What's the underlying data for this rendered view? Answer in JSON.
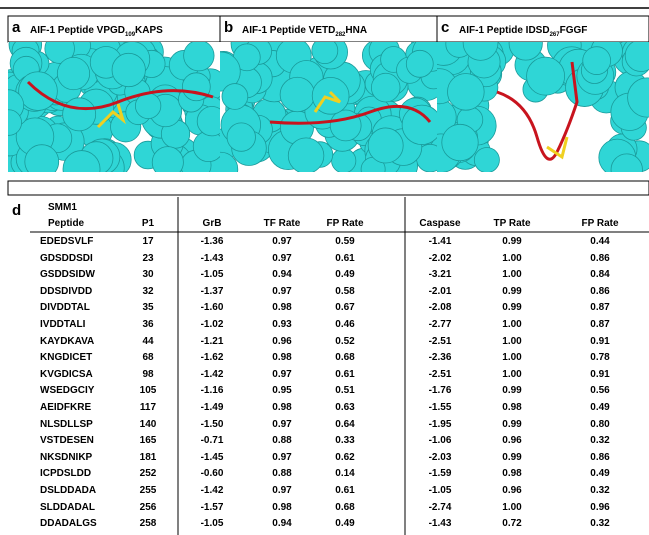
{
  "panels": [
    {
      "letter": "a",
      "title": "AIF-1 Peptide VPGD",
      "subscript": "109",
      "title_end": "KAPS"
    },
    {
      "letter": "b",
      "title": "AIF-1 Peptide VETD",
      "subscript": "282",
      "title_end": "HNA"
    },
    {
      "letter": "c",
      "title": "AIF-1 Peptide IDSD",
      "subscript": "267",
      "title_end": "FGGF"
    }
  ],
  "table": {
    "letter": "d",
    "header_top": "SMM1",
    "columns": [
      "Peptide",
      "P1",
      "GrB",
      "TF Rate",
      "FP Rate",
      "Caspase",
      "TP Rate",
      "FP Rate"
    ],
    "rows": [
      [
        "EDEDSVLF",
        "17",
        "-1.36",
        "0.97",
        "0.59",
        "-1.41",
        "0.99",
        "0.44"
      ],
      [
        "GDSDDSDI",
        "23",
        "-1.43",
        "0.97",
        "0.61",
        "-2.02",
        "1.00",
        "0.86"
      ],
      [
        "GSDDSIDW",
        "30",
        "-1.05",
        "0.94",
        "0.49",
        "-3.21",
        "1.00",
        "0.84"
      ],
      [
        "DDSDIVDD",
        "32",
        "-1.37",
        "0.97",
        "0.58",
        "-2.01",
        "0.99",
        "0.86"
      ],
      [
        "DIVDDTAL",
        "35",
        "-1.60",
        "0.98",
        "0.67",
        "-2.08",
        "0.99",
        "0.87"
      ],
      [
        "IVDDTALI",
        "36",
        "-1.02",
        "0.93",
        "0.46",
        "-2.77",
        "1.00",
        "0.87"
      ],
      [
        "KAYDKAVA",
        "44",
        "-1.21",
        "0.96",
        "0.52",
        "-2.51",
        "1.00",
        "0.91"
      ],
      [
        "KNGDICET",
        "68",
        "-1.62",
        "0.98",
        "0.68",
        "-2.36",
        "1.00",
        "0.78"
      ],
      [
        "KVGDICSA",
        "98",
        "-1.42",
        "0.97",
        "0.61",
        "-2.51",
        "1.00",
        "0.91"
      ],
      [
        "WSEDGCIY",
        "105",
        "-1.16",
        "0.95",
        "0.51",
        "-1.76",
        "0.99",
        "0.56"
      ],
      [
        "AEIDFKRE",
        "117",
        "-1.49",
        "0.98",
        "0.63",
        "-1.55",
        "0.98",
        "0.49"
      ],
      [
        "NLSDLLSP",
        "140",
        "-1.50",
        "0.97",
        "0.64",
        "-1.95",
        "0.99",
        "0.80"
      ],
      [
        "VSTDESEN",
        "165",
        "-0.71",
        "0.88",
        "0.33",
        "-1.06",
        "0.96",
        "0.32"
      ],
      [
        "NKSDNIKP",
        "181",
        "-1.45",
        "0.97",
        "0.62",
        "-2.03",
        "0.99",
        "0.86"
      ],
      [
        "ICPDSLDD",
        "252",
        "-0.60",
        "0.88",
        "0.14",
        "-1.59",
        "0.98",
        "0.49"
      ],
      [
        "DSLDDADA",
        "255",
        "-1.42",
        "0.97",
        "0.61",
        "-1.05",
        "0.96",
        "0.32"
      ],
      [
        "SLDDADAL",
        "256",
        "-1.57",
        "0.98",
        "0.68",
        "-2.74",
        "1.00",
        "0.96"
      ],
      [
        "DDADALGS",
        "258",
        "-1.05",
        "0.94",
        "0.49",
        "-1.43",
        "0.72",
        "0.32"
      ]
    ]
  }
}
